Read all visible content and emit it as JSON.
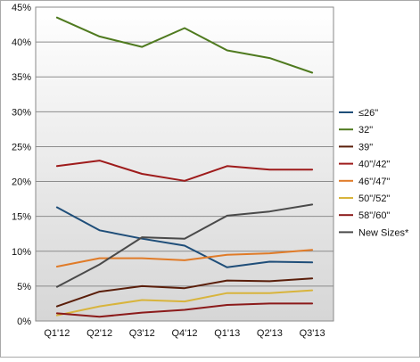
{
  "chart_data": {
    "type": "line",
    "categories": [
      "Q1'12",
      "Q2'12",
      "Q3'12",
      "Q4'12",
      "Q1'13",
      "Q2'13",
      "Q3'13"
    ],
    "ylim": [
      0,
      45
    ],
    "yticks": [
      "0%",
      "5%",
      "10%",
      "15%",
      "20%",
      "25%",
      "30%",
      "35%",
      "40%",
      "45%"
    ],
    "grid": "horizontal",
    "legend_position": "right",
    "series": [
      {
        "name": "≤26\"",
        "color": "#1f4e79",
        "values": [
          16.3,
          13.0,
          11.8,
          10.8,
          7.7,
          8.5,
          8.4
        ]
      },
      {
        "name": "32\"",
        "color": "#4f7a1f",
        "values": [
          43.5,
          40.8,
          39.3,
          42.0,
          38.8,
          37.7,
          35.6
        ]
      },
      {
        "name": "39\"",
        "color": "#5a1e0a",
        "values": [
          2.1,
          4.2,
          5.0,
          4.7,
          5.8,
          5.7,
          6.1
        ]
      },
      {
        "name": "40\"/42\"",
        "color": "#9e1b1b",
        "values": [
          22.2,
          23.0,
          21.1,
          20.1,
          22.2,
          21.7,
          21.7
        ]
      },
      {
        "name": "46\"/47\"",
        "color": "#e07b28",
        "values": [
          7.8,
          9.0,
          9.0,
          8.7,
          9.5,
          9.7,
          10.2
        ]
      },
      {
        "name": "50\"/52\"",
        "color": "#d8b43c",
        "values": [
          0.8,
          2.1,
          3.0,
          2.8,
          4.0,
          4.0,
          4.4
        ]
      },
      {
        "name": "58\"/60\"",
        "color": "#8b1a1a",
        "values": [
          1.1,
          0.6,
          1.2,
          1.6,
          2.3,
          2.5,
          2.5
        ]
      },
      {
        "name": "New Sizes*",
        "color": "#4a4a4a",
        "values": [
          4.9,
          8.1,
          12.0,
          11.8,
          15.1,
          15.7,
          16.7
        ]
      }
    ]
  }
}
